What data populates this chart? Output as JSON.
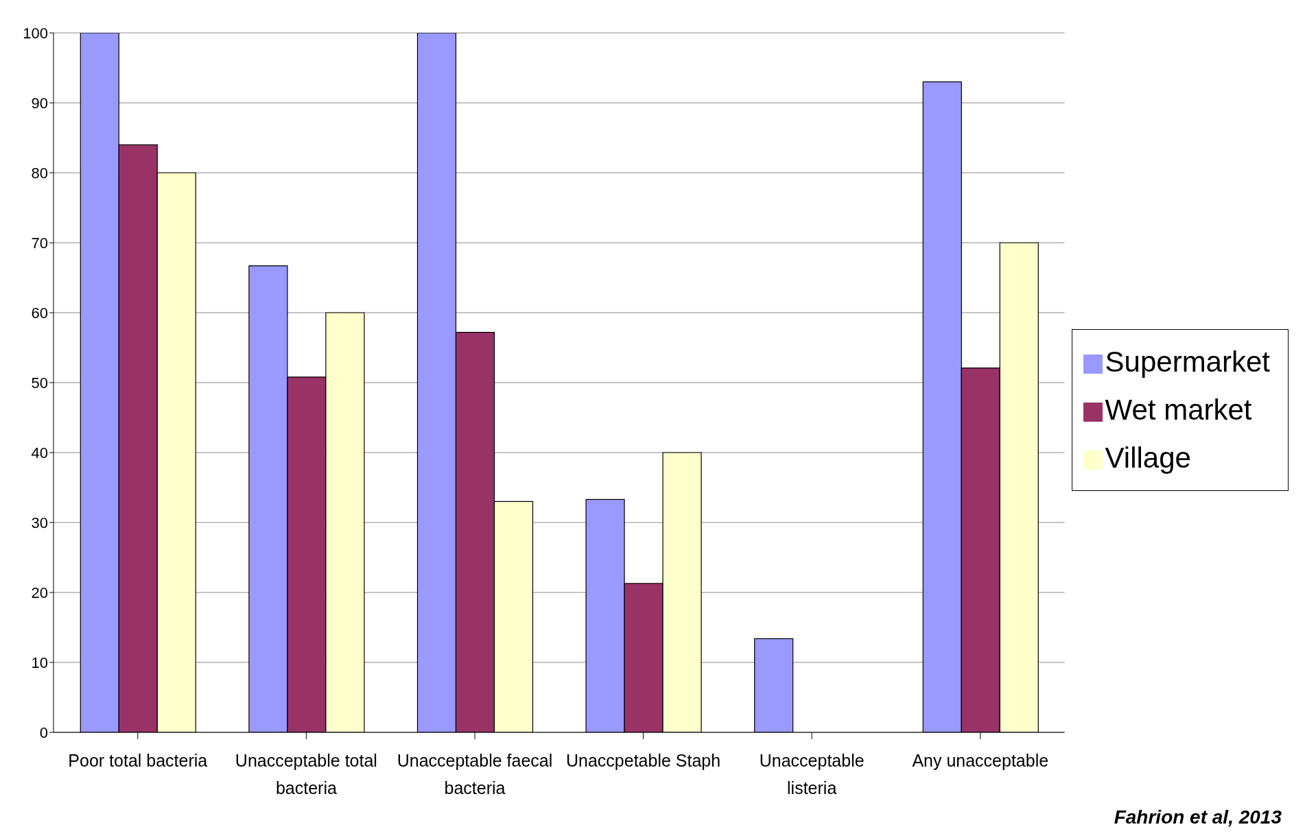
{
  "chart_data": {
    "type": "bar",
    "categories": [
      "Poor total bacteria",
      "Unacceptable total bacteria",
      "Unacceptable faecal bacteria",
      "Unaccpetable Staph",
      "Unacceptable listeria",
      "Any unacceptable"
    ],
    "series": [
      {
        "name": "Supermarket",
        "color": "#9999ff",
        "values": [
          100,
          66.7,
          100,
          33.3,
          13.4,
          93
        ]
      },
      {
        "name": "Wet market",
        "color": "#993366",
        "values": [
          84,
          50.8,
          57.2,
          21.3,
          0,
          52.1
        ]
      },
      {
        "name": "Village",
        "color": "#ffffcc",
        "values": [
          80,
          60,
          33,
          40,
          0,
          70
        ]
      }
    ],
    "ylim": [
      0,
      100
    ],
    "yticks": [
      0,
      10,
      20,
      30,
      40,
      50,
      60,
      70,
      80,
      90,
      100
    ],
    "grid": "y",
    "legend": "right",
    "annotations": [
      "Fahrion et al, 2013"
    ]
  }
}
